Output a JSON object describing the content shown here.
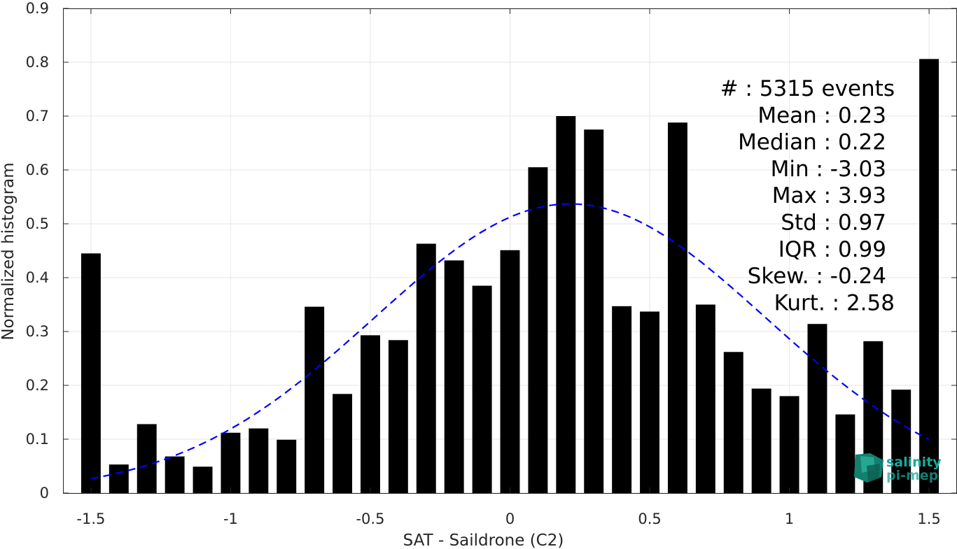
{
  "chart_data": {
    "type": "bar",
    "xlabel": "SAT - Saildrone (C2)",
    "ylabel": "Normalized histogram",
    "xlim": [
      -1.6,
      1.6
    ],
    "ylim": [
      0,
      0.9
    ],
    "grid": true,
    "x_ticks": [
      -1.5,
      -1,
      -0.5,
      0,
      0.5,
      1,
      1.5
    ],
    "x_tick_labels": [
      "-1.5",
      "-1",
      "-0.5",
      "0",
      "0.5",
      "1",
      "1.5"
    ],
    "y_ticks": [
      0,
      0.1,
      0.2,
      0.3,
      0.4,
      0.5,
      0.6,
      0.7,
      0.8,
      0.9
    ],
    "y_tick_labels": [
      "0",
      "0.1",
      "0.2",
      "0.3",
      "0.4",
      "0.5",
      "0.6",
      "0.7",
      "0.8",
      "0.9"
    ],
    "bars": {
      "x": [
        -1.5,
        -1.4,
        -1.3,
        -1.2,
        -1.1,
        -1.0,
        -0.9,
        -0.8,
        -0.7,
        -0.6,
        -0.5,
        -0.4,
        -0.3,
        -0.2,
        -0.1,
        0.0,
        0.1,
        0.2,
        0.3,
        0.4,
        0.5,
        0.6,
        0.7,
        0.8,
        0.9,
        1.0,
        1.1,
        1.2,
        1.3,
        1.4,
        1.5
      ],
      "values": [
        0.445,
        0.053,
        0.128,
        0.068,
        0.049,
        0.112,
        0.12,
        0.099,
        0.346,
        0.184,
        0.293,
        0.284,
        0.463,
        0.432,
        0.385,
        0.451,
        0.605,
        0.7,
        0.675,
        0.347,
        0.337,
        0.688,
        0.35,
        0.262,
        0.194,
        0.18,
        0.314,
        0.146,
        0.282,
        0.192,
        0.806
      ],
      "color": "#000000",
      "bar_width": 0.07
    },
    "fit": {
      "kind": "gaussian",
      "mean": 0.215,
      "amplitude": 0.537,
      "sigma": 0.7,
      "x_range": [
        -1.5,
        1.5
      ],
      "color": "#0000ff",
      "style": "dashed"
    },
    "stats": [
      "#  : 5315 events",
      "Mean : 0.23",
      "Median : 0.22",
      "Min : -3.03",
      "Max : 3.93",
      "Std : 0.97",
      "IQR : 0.99",
      "Skew. : -0.24",
      "Kurt. : 2.58"
    ]
  },
  "logo": {
    "line1": "salinity",
    "line2": "pi-mep",
    "color": "#1aa99a"
  }
}
